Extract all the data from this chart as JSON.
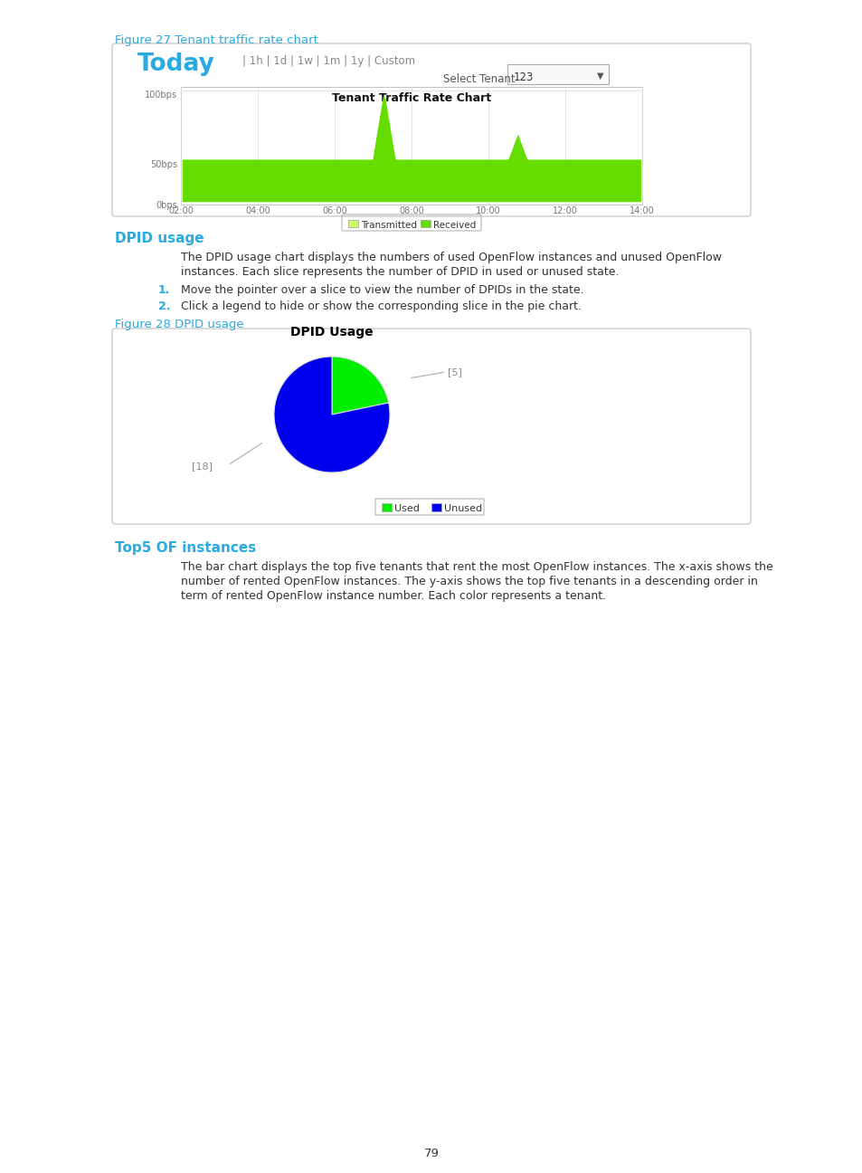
{
  "page_bg": "#ffffff",
  "fig27_title": "Figure 27 Tenant traffic rate chart",
  "fig27_title_color": "#29abe2",
  "fig27_today_color": "#29abe2",
  "fig27_nav_color": "#888888",
  "fig27_nav": "| 1h | 1d | 1w | 1m | 1y | Custom",
  "fig27_select_label": "Select Tenant",
  "fig27_select_value": "123",
  "fig27_chart_title": "Tenant Traffic Rate Chart",
  "fig27_yticks": [
    "100bps",
    "50bps",
    "0bps"
  ],
  "fig27_xticks": [
    "02:00",
    "04:00",
    "06:00",
    "08:00",
    "10:00",
    "12:00",
    "14:00"
  ],
  "fig27_transmitted_color": "#ccff66",
  "fig27_received_color": "#66dd00",
  "section1_title": "DPID usage",
  "section1_title_color": "#29abe2",
  "section1_body1": "The DPID usage chart displays the numbers of used OpenFlow instances and unused OpenFlow",
  "section1_body2": "instances. Each slice represents the number of DPID in used or unused state.",
  "section1_item1": "Move the pointer over a slice to view the number of DPIDs in the state.",
  "section1_item2": "Click a legend to hide or show the corresponding slice in the pie chart.",
  "section1_num_color": "#29abe2",
  "fig28_title": "Figure 28 DPID usage",
  "fig28_title_color": "#29abe2",
  "fig28_chart_title": "DPID Usage",
  "fig28_used_val": 5,
  "fig28_unused_val": 18,
  "fig28_used_color": "#00ee00",
  "fig28_unused_color": "#0000ee",
  "fig28_legend_used": "Used",
  "fig28_legend_unused": "Unused",
  "section2_title": "Top5 OF instances",
  "section2_title_color": "#29abe2",
  "section2_body1": "The bar chart displays the top five tenants that rent the most OpenFlow instances. The x-axis shows the",
  "section2_body2": "number of rented OpenFlow instances. The y-axis shows the top five tenants in a descending order in",
  "section2_body3": "term of rented OpenFlow instance number. Each color represents a tenant.",
  "page_number": "79",
  "box_border": "#cccccc"
}
